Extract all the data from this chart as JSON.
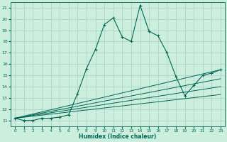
{
  "xlabel": "Humidex (Indice chaleur)",
  "bg_color": "#cceedd",
  "line_color": "#006655",
  "grid_color": "#aacccc",
  "xlim": [
    -0.5,
    23.5
  ],
  "ylim": [
    10.5,
    21.5
  ],
  "yticks": [
    11,
    12,
    13,
    14,
    15,
    16,
    17,
    18,
    19,
    20,
    21
  ],
  "xticks": [
    0,
    1,
    2,
    3,
    4,
    5,
    6,
    7,
    8,
    9,
    10,
    11,
    12,
    13,
    14,
    15,
    16,
    17,
    18,
    19,
    20,
    21,
    22,
    23
  ],
  "main_line_x": [
    0,
    1,
    2,
    3,
    4,
    5,
    6,
    7,
    8,
    9,
    10,
    11,
    12,
    13,
    14,
    15,
    16,
    17,
    18,
    19,
    20,
    21,
    22,
    23
  ],
  "main_line_y": [
    11.2,
    11.0,
    11.0,
    11.2,
    11.2,
    11.3,
    11.5,
    13.4,
    15.6,
    17.3,
    19.5,
    20.1,
    18.4,
    18.0,
    21.2,
    18.9,
    18.5,
    17.0,
    14.9,
    13.2,
    14.1,
    15.0,
    15.2,
    15.5
  ],
  "flat_lines": [
    {
      "x": [
        0,
        23
      ],
      "y": [
        11.2,
        15.5
      ]
    },
    {
      "x": [
        0,
        23
      ],
      "y": [
        11.2,
        14.7
      ]
    },
    {
      "x": [
        0,
        23
      ],
      "y": [
        11.2,
        14.0
      ]
    },
    {
      "x": [
        0,
        23
      ],
      "y": [
        11.2,
        13.3
      ]
    }
  ]
}
